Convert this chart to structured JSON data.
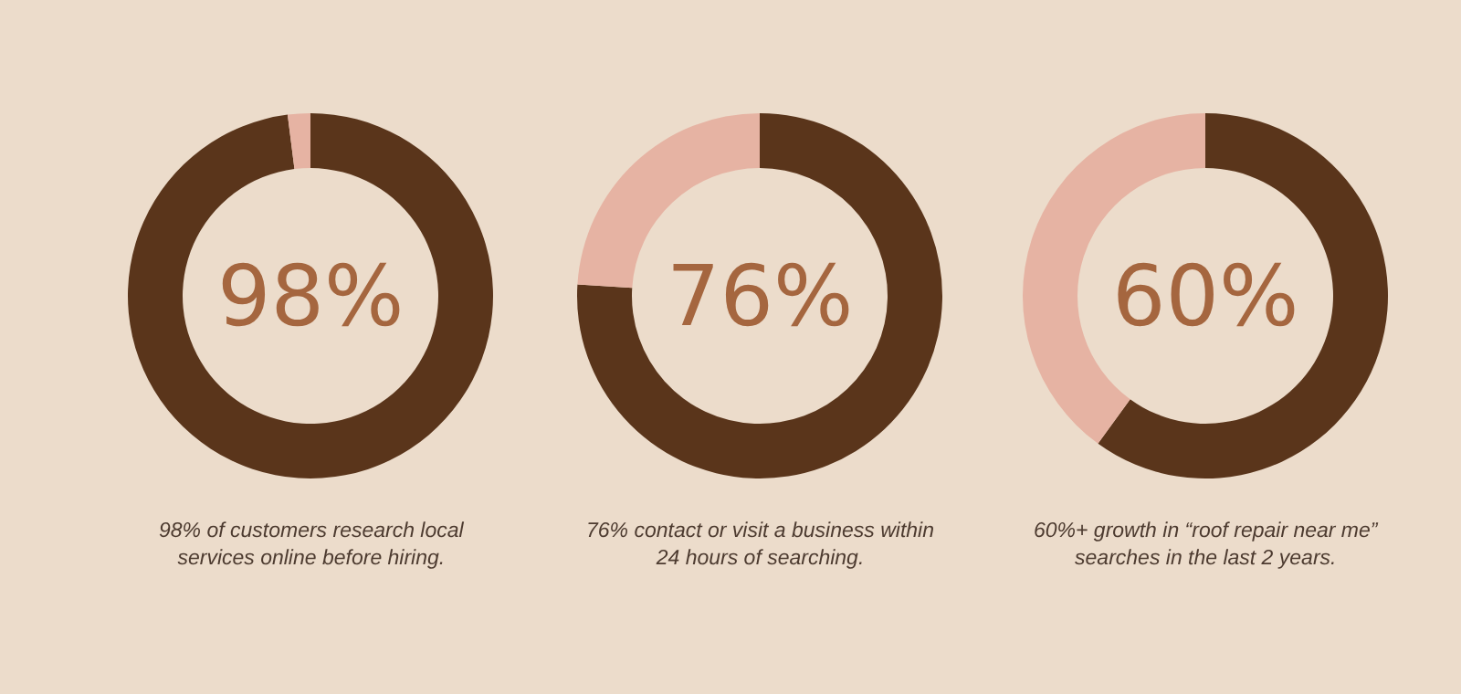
{
  "chart_data": [
    {
      "type": "donut",
      "categories": [
        null,
        null
      ],
      "values": [
        98,
        2
      ],
      "colors": [
        "#5a351b",
        "#e6b3a3"
      ],
      "annotations": [
        "98%",
        "98% of customers research local\nservices online before hiring."
      ]
    },
    {
      "type": "donut",
      "categories": [
        null,
        null
      ],
      "values": [
        76,
        24
      ],
      "colors": [
        "#5a351b",
        "#e6b3a3"
      ],
      "annotations": [
        "76%",
        "76% contact or visit a business within\n24 hours of searching."
      ]
    },
    {
      "type": "donut",
      "categories": [
        null,
        null
      ],
      "values": [
        60,
        40
      ],
      "colors": [
        "#5a351b",
        "#e6b3a3"
      ],
      "annotations": [
        "60%",
        "60%+ growth in “roof repair near me”\nsearches in the last 2 years."
      ]
    }
  ]
}
